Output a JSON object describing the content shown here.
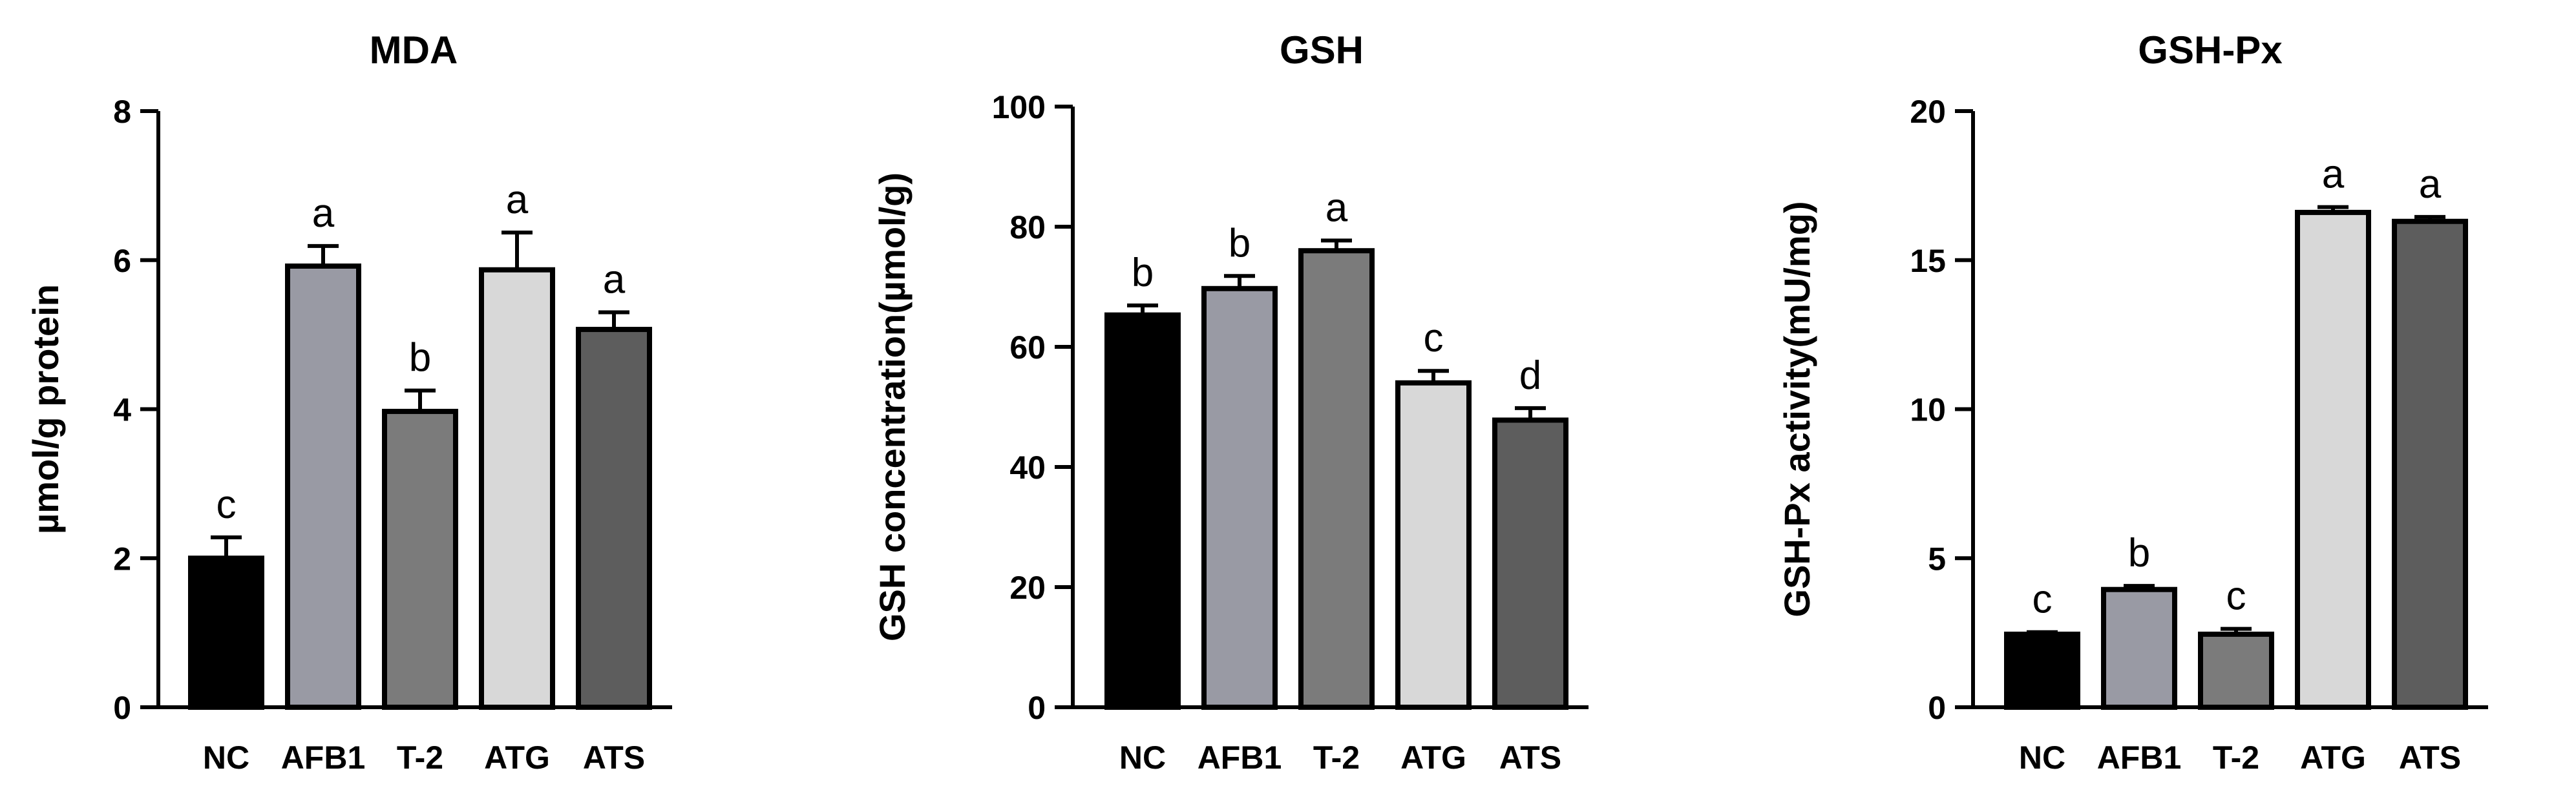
{
  "chart_data": [
    {
      "type": "bar",
      "title": "MDA",
      "ylabel": "µmol/g protein",
      "xlabel": "",
      "categories": [
        "NC",
        "AFB1",
        "T-2",
        "ATG",
        "ATS"
      ],
      "values": [
        2.0,
        5.92,
        3.97,
        5.87,
        5.07
      ],
      "errors": [
        0.28,
        0.27,
        0.28,
        0.5,
        0.23
      ],
      "labels": [
        "c",
        "a",
        "b",
        "a",
        "a"
      ],
      "ylim": [
        0,
        8
      ],
      "yticks": [
        "0",
        "2",
        "4",
        "6",
        "8"
      ],
      "colors": [
        "#000000",
        "#999aa4",
        "#7b7b7b",
        "#d8d8d8",
        "#5d5d5d"
      ]
    },
    {
      "type": "bar",
      "title": "GSH",
      "ylabel": "GSH concentration(µmol/g)",
      "xlabel": "",
      "categories": [
        "NC",
        "AFB1",
        "T-2",
        "ATG",
        "ATS"
      ],
      "values": [
        65.3,
        69.7,
        76.0,
        54.0,
        47.8
      ],
      "errors": [
        1.6,
        2.1,
        1.7,
        2.0,
        2.0
      ],
      "labels": [
        "b",
        "b",
        "a",
        "c",
        "d"
      ],
      "ylim": [
        0,
        100
      ],
      "yticks": [
        "0",
        "20",
        "40",
        "60",
        "80",
        "100"
      ],
      "colors": [
        "#000000",
        "#999aa4",
        "#7b7b7b",
        "#d8d8d8",
        "#5d5d5d"
      ]
    },
    {
      "type": "bar",
      "title": "GSH-Px",
      "ylabel": "GSH-Px activity(mU/mg)",
      "xlabel": "",
      "categories": [
        "NC",
        "AFB1",
        "T-2",
        "ATG",
        "ATS"
      ],
      "values": [
        2.45,
        3.95,
        2.45,
        16.6,
        16.3
      ],
      "errors": [
        0.07,
        0.12,
        0.18,
        0.18,
        0.15
      ],
      "labels": [
        "c",
        "b",
        "c",
        "a",
        "a"
      ],
      "ylim": [
        0,
        20
      ],
      "yticks": [
        "0",
        "5",
        "10",
        "15",
        "20"
      ],
      "colors": [
        "#000000",
        "#999aa4",
        "#7b7b7b",
        "#d8d8d8",
        "#5d5d5d"
      ]
    }
  ]
}
